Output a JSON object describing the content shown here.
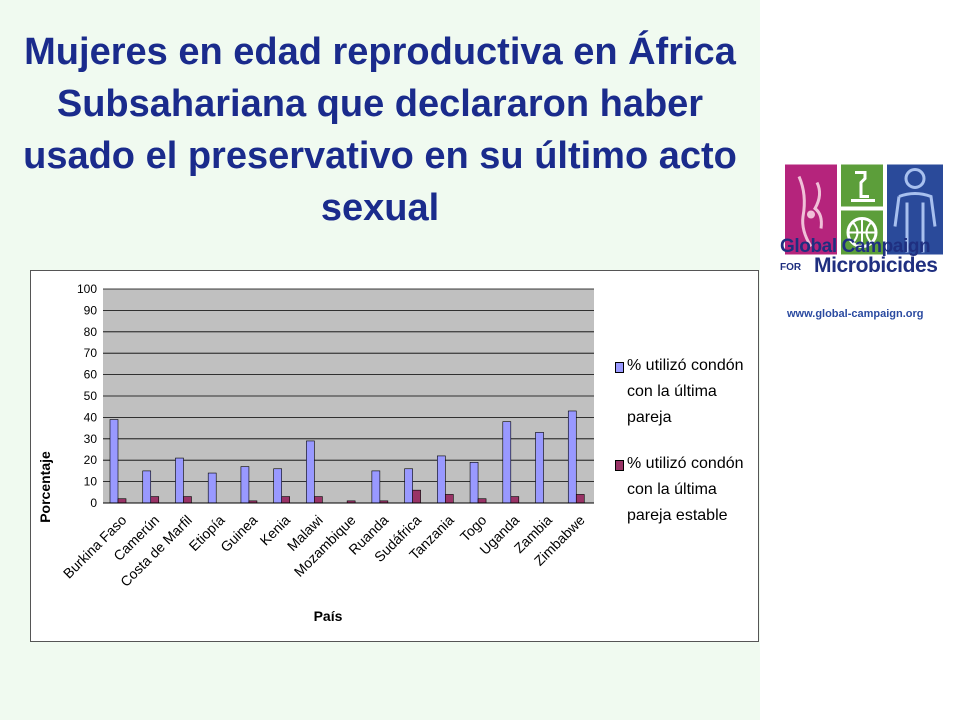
{
  "slide": {
    "title": "Mujeres en edad reproductiva en África Subsahariana que declararon haber usado el preservativo en su último acto sexual"
  },
  "logo": {
    "line1": "Global Campaign",
    "for": "FOR",
    "line2": "Microbicides",
    "url": "www.global-campaign.org",
    "colors": {
      "magenta": "#b5247c",
      "green": "#5c9e3a",
      "blue": "#2a4a9a"
    }
  },
  "chart_data": {
    "type": "bar",
    "xlabel": "País",
    "ylabel": "Porcentaje",
    "ylim": [
      0,
      100
    ],
    "yticks": [
      0,
      10,
      20,
      30,
      40,
      50,
      60,
      70,
      80,
      90,
      100
    ],
    "grid": true,
    "legend_position": "right",
    "categories": [
      "Burkina Faso",
      "Camerún",
      "Costa de Marfil",
      "Etiopía",
      "Guinea",
      "Kenia",
      "Malawi",
      "Mozambique",
      "Ruanda",
      "Sudáfrica",
      "Tanzania",
      "Togo",
      "Uganda",
      "Zambia",
      "Zimbabwe"
    ],
    "series": [
      {
        "name": "% utilizó condón con la última pareja",
        "color": "#9999ff",
        "values": [
          39,
          15,
          21,
          14,
          17,
          16,
          29,
          0,
          15,
          16,
          22,
          19,
          38,
          33,
          43
        ]
      },
      {
        "name": "% utilizó condón con la última pareja estable",
        "color": "#993366",
        "values": [
          2,
          3,
          3,
          0,
          1,
          3,
          3,
          1,
          1,
          6,
          4,
          2,
          3,
          0,
          4
        ]
      }
    ]
  }
}
